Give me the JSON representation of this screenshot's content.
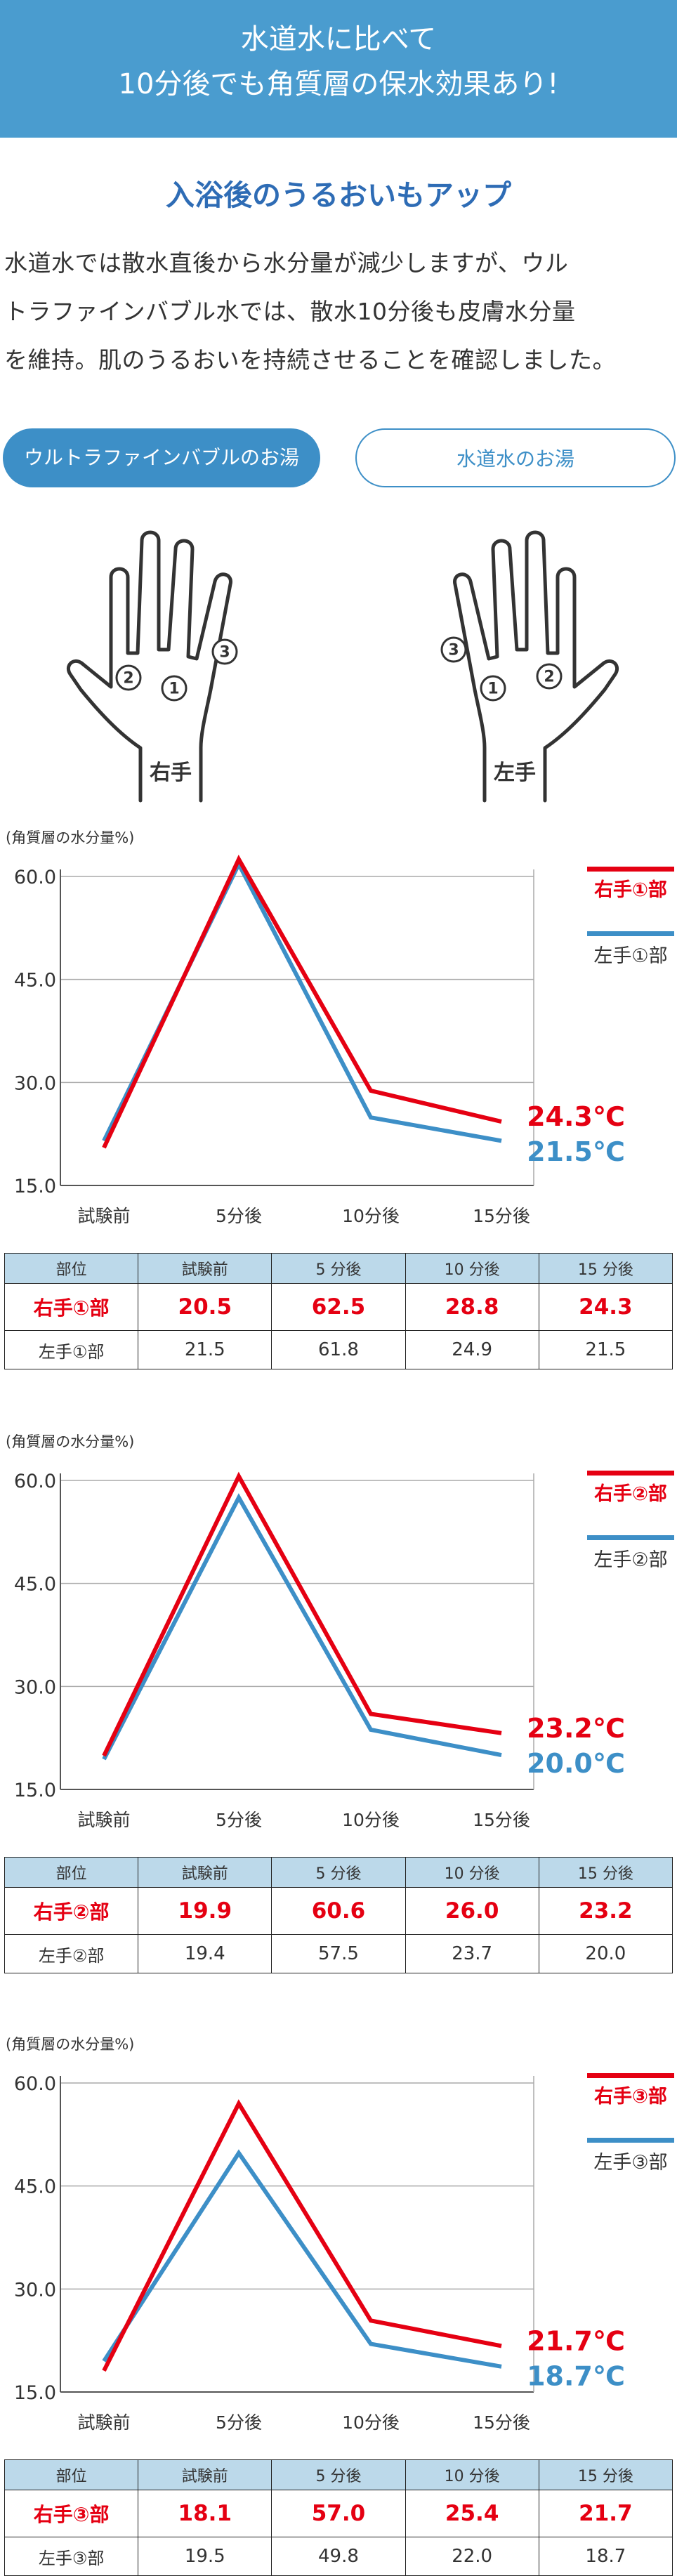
{
  "header": {
    "line1": "水道水に比べて",
    "line2": "10分後でも角質層の保水効果あり!"
  },
  "subtitle": "入浴後のうるおいもアップ",
  "body_lines": [
    "水道水では散水直後から水分量が減少しますが、ウル",
    "トラファインバブル水では、散水10分後も皮膚水分量",
    "を維持。肌のうるおいを持続させることを確認しました。"
  ],
  "tabs": [
    {
      "label": "ウルトラファインバブルのお湯",
      "active": true
    },
    {
      "label": "水道水のお湯",
      "active": false
    }
  ],
  "hands": [
    {
      "label": "右手",
      "markers": [
        "①",
        "②",
        "③"
      ]
    },
    {
      "label": "左手",
      "markers": [
        "①",
        "②",
        "③"
      ]
    }
  ],
  "colors": {
    "red": "#e50012",
    "blue": "#3d8fc7"
  },
  "chart_data": [
    {
      "type": "line",
      "ylabel": "(角質層の水分量%)",
      "categories": [
        "試験前",
        "5分後",
        "10分後",
        "15分後"
      ],
      "y_ticks": [
        "60.0",
        "45.0",
        "30.0",
        "15.0"
      ],
      "ylim": [
        15,
        60
      ],
      "legend_position": "right",
      "series": [
        {
          "name": "右手①部",
          "color": "#e50012",
          "values": [
            20.5,
            62.5,
            28.8,
            24.3
          ],
          "end_label": "24.3℃"
        },
        {
          "name": "左手①部",
          "color": "#3d8fc7",
          "values": [
            21.5,
            61.8,
            24.9,
            21.5
          ],
          "end_label": "21.5℃"
        }
      ],
      "table": {
        "headers": [
          "部位",
          "試験前",
          "5 分後",
          "10 分後",
          "15 分後"
        ],
        "rows": [
          [
            "右手①部",
            "20.5",
            "62.5",
            "28.8",
            "24.3"
          ],
          [
            "左手①部",
            "21.5",
            "61.8",
            "24.9",
            "21.5"
          ]
        ]
      }
    },
    {
      "type": "line",
      "ylabel": "(角質層の水分量%)",
      "categories": [
        "試験前",
        "5分後",
        "10分後",
        "15分後"
      ],
      "y_ticks": [
        "60.0",
        "45.0",
        "30.0",
        "15.0"
      ],
      "ylim": [
        15,
        60
      ],
      "legend_position": "right",
      "series": [
        {
          "name": "右手②部",
          "color": "#e50012",
          "values": [
            19.9,
            60.6,
            26.0,
            23.2
          ],
          "end_label": "23.2℃"
        },
        {
          "name": "左手②部",
          "color": "#3d8fc7",
          "values": [
            19.4,
            57.5,
            23.7,
            20.0
          ],
          "end_label": "20.0℃"
        }
      ],
      "table": {
        "headers": [
          "部位",
          "試験前",
          "5 分後",
          "10 分後",
          "15 分後"
        ],
        "rows": [
          [
            "右手②部",
            "19.9",
            "60.6",
            "26.0",
            "23.2"
          ],
          [
            "左手②部",
            "19.4",
            "57.5",
            "23.7",
            "20.0"
          ]
        ]
      }
    },
    {
      "type": "line",
      "ylabel": "(角質層の水分量%)",
      "categories": [
        "試験前",
        "5分後",
        "10分後",
        "15分後"
      ],
      "y_ticks": [
        "60.0",
        "45.0",
        "30.0",
        "15.0"
      ],
      "ylim": [
        15,
        60
      ],
      "legend_position": "right",
      "series": [
        {
          "name": "右手③部",
          "color": "#e50012",
          "values": [
            18.1,
            57.0,
            25.4,
            21.7
          ],
          "end_label": "21.7℃"
        },
        {
          "name": "左手③部",
          "color": "#3d8fc7",
          "values": [
            19.5,
            49.8,
            22.0,
            18.7
          ],
          "end_label": "18.7℃"
        }
      ],
      "table": {
        "headers": [
          "部位",
          "試験前",
          "5 分後",
          "10 分後",
          "15 分後"
        ],
        "rows": [
          [
            "右手③部",
            "18.1",
            "57.0",
            "25.4",
            "21.7"
          ],
          [
            "左手③部",
            "19.5",
            "49.8",
            "22.0",
            "18.7"
          ]
        ]
      }
    }
  ]
}
